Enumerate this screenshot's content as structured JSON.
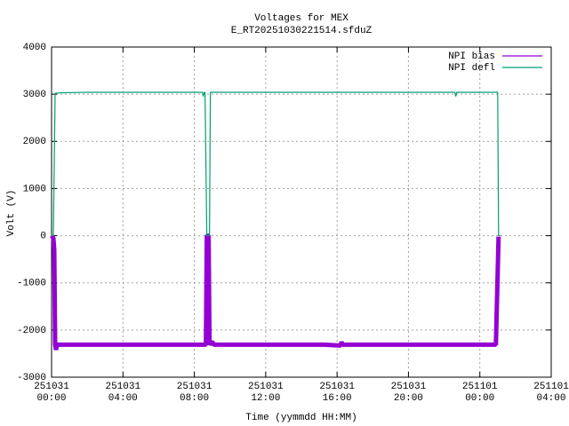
{
  "chart_data": {
    "type": "line",
    "title": "Voltages for MEX",
    "subtitle": "E_RT20251030221514.sfduZ",
    "x_label": "Time (yymmdd HH:MM)",
    "y_label": "Volt (V)",
    "xlim": [
      0,
      28
    ],
    "xticks": [
      {
        "value": 0,
        "label": "251031\n00:00"
      },
      {
        "value": 4,
        "label": "251031\n04:00"
      },
      {
        "value": 8,
        "label": "251031\n08:00"
      },
      {
        "value": 12,
        "label": "251031\n12:00"
      },
      {
        "value": 16,
        "label": "251031\n16:00"
      },
      {
        "value": 20,
        "label": "251031\n20:00"
      },
      {
        "value": 24,
        "label": "251101\n00:00"
      },
      {
        "value": 28,
        "label": "251101\n04:00"
      }
    ],
    "ylim": [
      -3000,
      4000
    ],
    "yticks": [
      -3000,
      -2000,
      -1000,
      0,
      1000,
      2000,
      3000,
      4000
    ],
    "grid": true,
    "legend": "top-right",
    "series": [
      {
        "name": "NPI bias",
        "color": "#9400d3",
        "x": [
          0,
          0.1,
          0.15,
          0.2,
          0.25,
          0.3,
          4,
          8,
          8.65,
          8.7,
          8.8,
          8.85,
          9,
          9.1,
          12,
          15.3,
          16.2,
          16.25,
          16.3,
          20,
          24.9,
          25.05
        ],
        "values": [
          0,
          -50,
          -300,
          -2300,
          -2420,
          -2310,
          -2310,
          -2310,
          -2310,
          0,
          0,
          -2310,
          -2250,
          -2310,
          -2310,
          -2310,
          -2330,
          -2250,
          -2310,
          -2310,
          -2310,
          -20
        ]
      },
      {
        "name": "NPI defl",
        "color": "#009e73",
        "x": [
          0,
          0.1,
          0.2,
          0.5,
          2,
          8.45,
          8.5,
          8.55,
          8.6,
          8.7,
          8.85,
          8.9,
          12,
          22.6,
          22.65,
          22.7,
          25.0,
          25.05,
          25.15
        ],
        "values": [
          0,
          0,
          3020,
          3030,
          3040,
          3040,
          2950,
          3040,
          3040,
          0,
          0,
          3040,
          3040,
          3040,
          2950,
          3040,
          3040,
          0,
          0
        ]
      }
    ]
  }
}
